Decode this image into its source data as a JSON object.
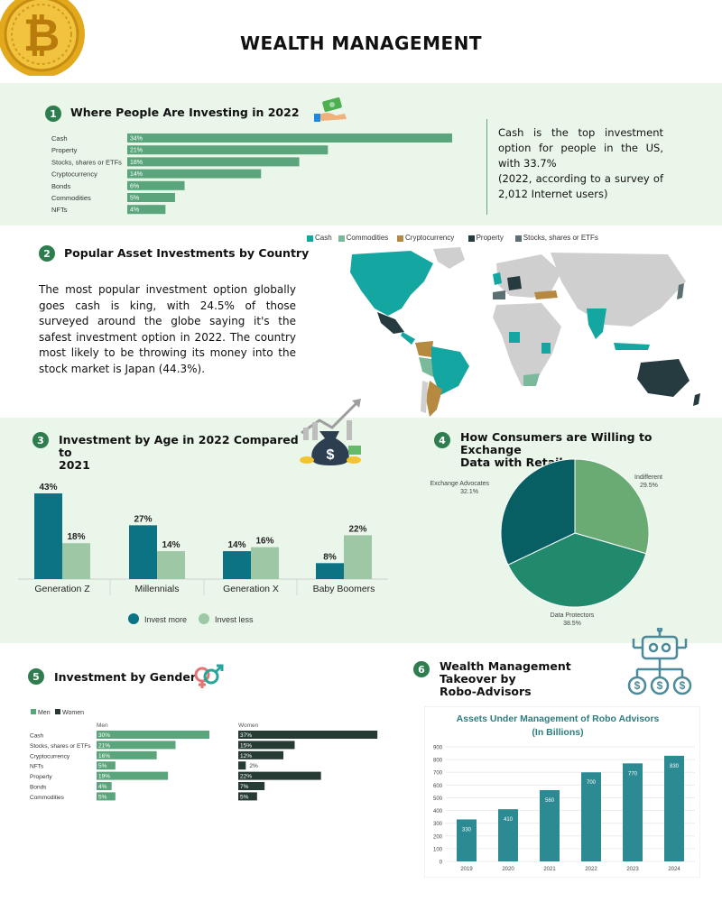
{
  "page_title": "WEALTH MANAGEMENT",
  "colors": {
    "green_band": "#eaf6ea",
    "bar_green": "#5aa57b",
    "dark": "#263b33",
    "teal": "#0f7a86",
    "sage": "#9ec8a8"
  },
  "section1": {
    "number": "1",
    "title": "Where People Are Investing in 2022",
    "note": "Cash is the top investment option for people in the US, with 33.7%",
    "note2": "(2022, according to a survey of 2,012 Internet users)"
  },
  "section2": {
    "number": "2",
    "title": "Popular Asset Investments by Country",
    "paragraph": "The most popular investment option globally goes cash is king, with 24.5% of those surveyed around the globe saying it's the safest investment option in 2022. The country most likely to be throwing its money into the stock market is Japan (44.3%).",
    "map_legend": [
      {
        "label": "Cash",
        "color": "#14a6a0"
      },
      {
        "label": "Commodities",
        "color": "#7ab99a"
      },
      {
        "label": "Cryptocurrency",
        "color": "#b5893f"
      },
      {
        "label": "Property",
        "color": "#263b40"
      },
      {
        "label": "Stocks, shares or ETFs",
        "color": "#5c6f72"
      }
    ]
  },
  "section3": {
    "number": "3",
    "title_line1": "Investment by Age in 2022 Compared to",
    "title_line2": "2021"
  },
  "section4": {
    "number": "4",
    "title_line1": "How Consumers are Willing to Exchange",
    "title_line2": "Data with Retailers"
  },
  "section5": {
    "number": "5",
    "title": "Investment by Gender"
  },
  "section6": {
    "number": "6",
    "title_line1": "Wealth Management Takeover by",
    "title_line2": "Robo-Advisors"
  },
  "chart_data": [
    {
      "type": "bar",
      "orientation": "horizontal",
      "title": "Where People Are Investing in 2022",
      "categories": [
        "Cash",
        "Property",
        "Stocks, shares or ETFs",
        "Cryptocurrency",
        "Bonds",
        "Commodities",
        "NFTs"
      ],
      "values": [
        34,
        21,
        18,
        14,
        6,
        5,
        4
      ],
      "value_labels": [
        "34%",
        "21%",
        "18%",
        "14%",
        "6%",
        "5%",
        "4%"
      ],
      "color": "#5aa57b"
    },
    {
      "type": "bar",
      "title": "Investment by Age in 2022 Compared to 2021",
      "categories": [
        "Generation Z",
        "Millennials",
        "Generation X",
        "Baby Boomers"
      ],
      "series": [
        {
          "name": "Invest more",
          "values": [
            43,
            27,
            14,
            8
          ],
          "labels": [
            "43%",
            "27%",
            "14%",
            "8%"
          ],
          "color": "#0b7383"
        },
        {
          "name": "Invest less",
          "values": [
            18,
            14,
            16,
            22
          ],
          "labels": [
            "18%",
            "14%",
            "16%",
            "22%"
          ],
          "color": "#9dc7a5"
        }
      ],
      "ylim": [
        0,
        45
      ],
      "legend": "bottom"
    },
    {
      "type": "pie",
      "title": "How Consumers are Willing to Exchange Data with Retailers",
      "slices": [
        {
          "name": "Indifferent",
          "value": 29.5,
          "label": "29.5%",
          "color": "#6aab73"
        },
        {
          "name": "Data Protectors",
          "value": 38.5,
          "label": "38.5%",
          "color": "#218a6d"
        },
        {
          "name": "Exchange Advocates",
          "value": 32.1,
          "label": "32.1%",
          "color": "#085f63"
        }
      ]
    },
    {
      "type": "bar",
      "orientation": "horizontal",
      "title": "Investment by Gender",
      "categories": [
        "Cash",
        "Stocks, shares or ETFs",
        "Cryptocurrency",
        "NFTs",
        "Property",
        "Bonds",
        "Commodities"
      ],
      "series": [
        {
          "name": "Men",
          "values": [
            30,
            21,
            16,
            5,
            19,
            4,
            5
          ],
          "labels": [
            "30%",
            "21%",
            "16%",
            "5%",
            "19%",
            "4%",
            "5%"
          ],
          "color": "#5aa57b"
        },
        {
          "name": "Women",
          "values": [
            37,
            15,
            12,
            2,
            22,
            7,
            5
          ],
          "labels": [
            "37%",
            "15%",
            "12%",
            "2%",
            "22%",
            "7%",
            "5%"
          ],
          "color": "#263b33"
        }
      ],
      "legend": "top-left"
    },
    {
      "type": "bar",
      "title": "Assets Under Management of Robo Advisors (In Billions)",
      "categories": [
        "2019",
        "2020",
        "2021",
        "2022",
        "2023",
        "2024"
      ],
      "values": [
        330,
        410,
        560,
        700,
        770,
        830
      ],
      "ylim": [
        0,
        900
      ],
      "yticks": [
        0,
        100,
        200,
        300,
        400,
        500,
        600,
        700,
        800,
        900
      ],
      "grid": true
    }
  ]
}
